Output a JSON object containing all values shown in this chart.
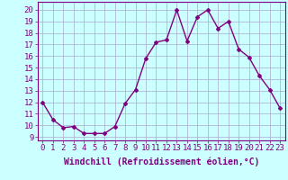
{
  "x": [
    0,
    1,
    2,
    3,
    4,
    5,
    6,
    7,
    8,
    9,
    10,
    11,
    12,
    13,
    14,
    15,
    16,
    17,
    18,
    19,
    20,
    21,
    22,
    23
  ],
  "y": [
    12.0,
    10.5,
    9.8,
    9.9,
    9.3,
    9.3,
    9.3,
    9.9,
    11.9,
    13.1,
    15.8,
    17.2,
    17.4,
    20.0,
    17.3,
    19.4,
    20.0,
    18.4,
    19.0,
    16.6,
    15.9,
    14.3,
    13.1,
    11.5
  ],
  "line_color": "#800080",
  "marker": "D",
  "marker_size": 2.0,
  "line_width": 1.0,
  "bg_color": "#ccffff",
  "grid_color": "#aaaacc",
  "xlabel": "Windchill (Refroidissement éolien,°C)",
  "xlabel_fontsize": 7,
  "yticks": [
    9,
    10,
    11,
    12,
    13,
    14,
    15,
    16,
    17,
    18,
    19,
    20
  ],
  "xlim": [
    -0.5,
    23.5
  ],
  "ylim": [
    8.7,
    20.7
  ],
  "tick_fontsize": 6.5
}
